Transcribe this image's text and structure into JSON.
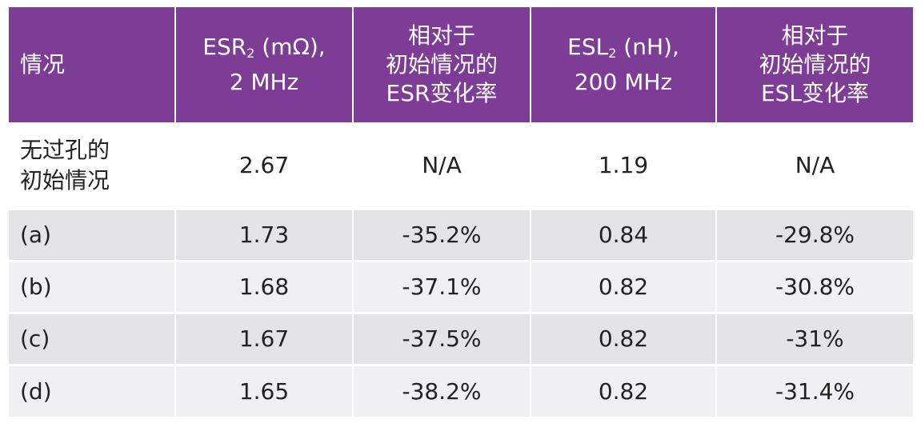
{
  "table": {
    "headers": {
      "case": "情况",
      "esr_main": "ESR",
      "esr_sub": "2",
      "esr_unit": " (mΩ),",
      "esr_freq": "2 MHz",
      "esr_change_line1": "相对于",
      "esr_change_line2": "初始情况的",
      "esr_change_line3": "ESR变化率",
      "esl_main": "ESL",
      "esl_sub": "2",
      "esl_unit": " (nH),",
      "esl_freq": "200 MHz",
      "esl_change_line1": "相对于",
      "esl_change_line2": "初始情况的",
      "esl_change_line3": "ESL变化率"
    },
    "rows": [
      {
        "case_line1": "无过孔的",
        "case_line2": "初始情况",
        "esr": "2.67",
        "esr_change": "N/A",
        "esl": "1.19",
        "esl_change": "N/A"
      },
      {
        "case": "(a)",
        "esr": "1.73",
        "esr_change": "-35.2%",
        "esl": "0.84",
        "esl_change": "-29.8%"
      },
      {
        "case": "(b)",
        "esr": "1.68",
        "esr_change": "-37.1%",
        "esl": "0.82",
        "esl_change": "-30.8%"
      },
      {
        "case": "(c)",
        "esr": "1.67",
        "esr_change": "-37.5%",
        "esl": "0.82",
        "esl_change": "-31%"
      },
      {
        "case": "(d)",
        "esr": "1.65",
        "esr_change": "-38.2%",
        "esl": "0.82",
        "esl_change": "-31.4%"
      }
    ],
    "colors": {
      "header_bg": "#7d3d97",
      "header_text": "#ffffff",
      "row_shade": "#e3e4e6",
      "body_text": "#222222"
    }
  }
}
